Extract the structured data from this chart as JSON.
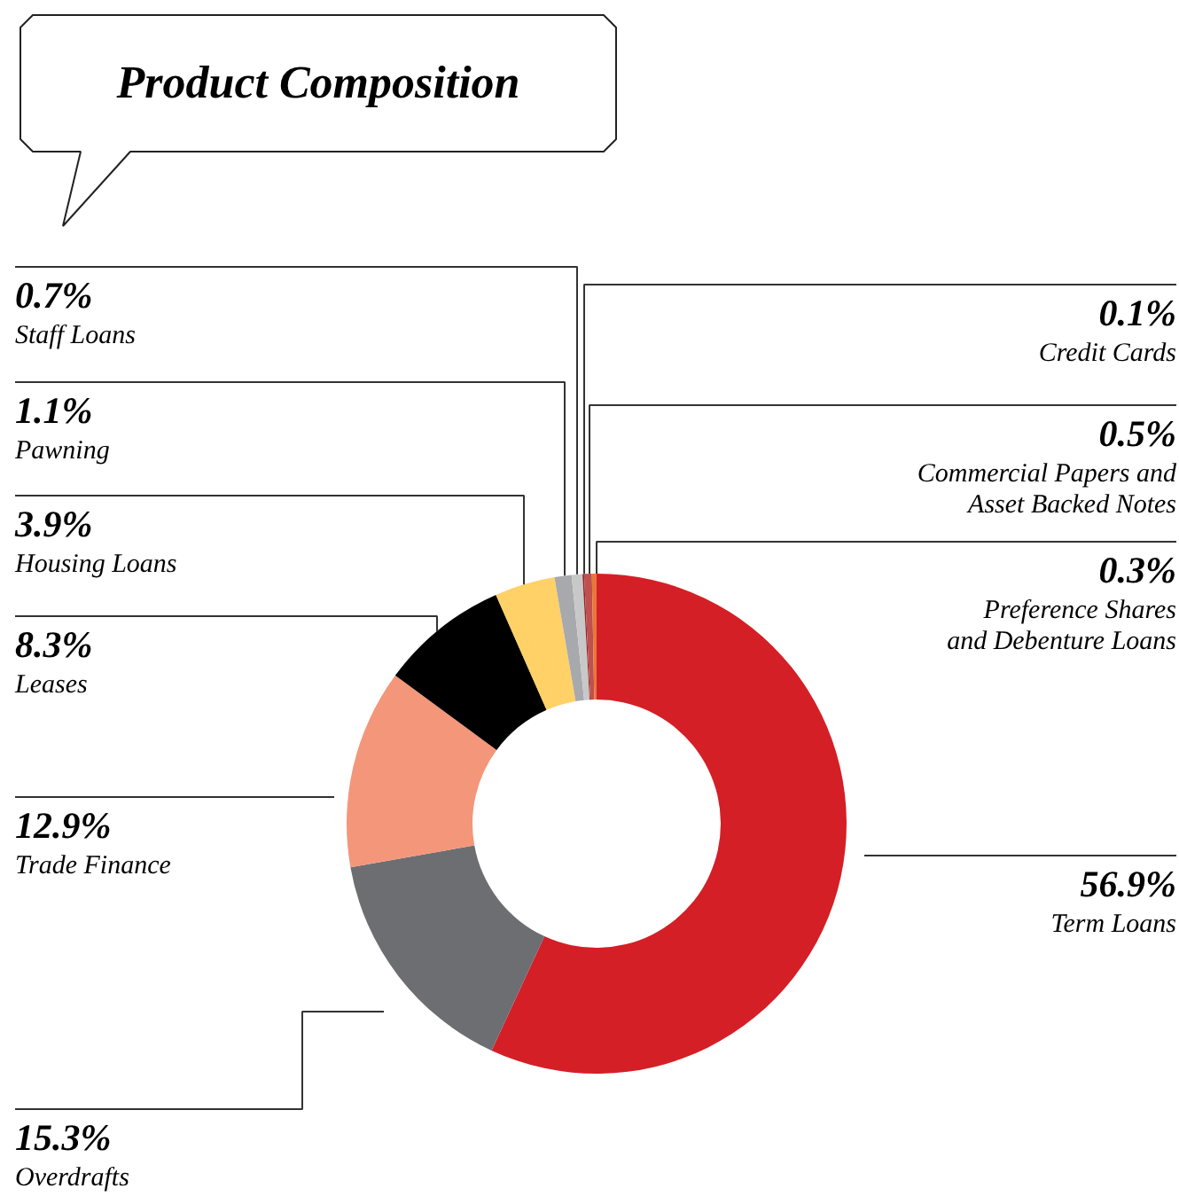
{
  "chart_data": {
    "type": "donut",
    "title": "Product Composition",
    "categories": [
      "Term Loans",
      "Overdrafts",
      "Trade Finance",
      "Leases",
      "Housing Loans",
      "Pawning",
      "Staff Loans",
      "Credit Cards",
      "Commercial Papers and\nAsset Backed Notes",
      "Preference Shares\nand Debenture Loans"
    ],
    "values": [
      56.9,
      15.3,
      12.9,
      8.3,
      3.9,
      1.1,
      0.7,
      0.1,
      0.5,
      0.3
    ],
    "value_labels": [
      "56.9%",
      "15.3%",
      "12.9%",
      "8.3%",
      "3.9%",
      "1.1%",
      "0.7%",
      "0.1%",
      "0.5%",
      "0.3%"
    ],
    "colors": [
      "#d41f26",
      "#6d6e71",
      "#f4967a",
      "#000000",
      "#ffd166",
      "#a7a9ac",
      "#c8c8c8",
      "#8b2a2a",
      "#c0504d",
      "#e8773a"
    ]
  }
}
